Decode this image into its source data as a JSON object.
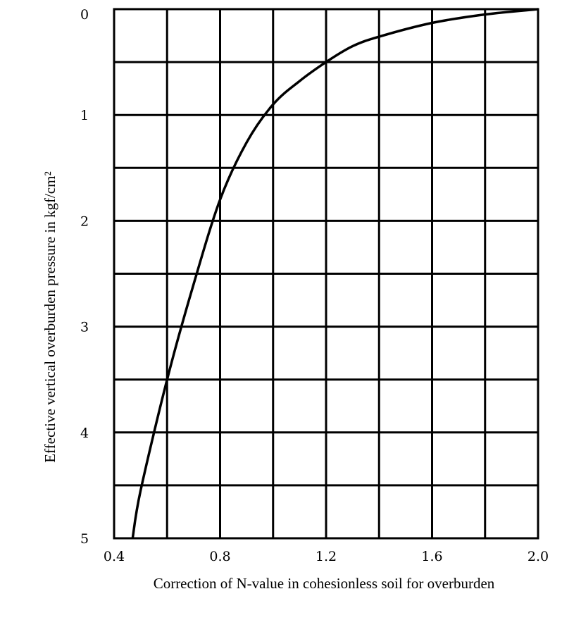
{
  "chart_data": {
    "type": "line",
    "title": "",
    "xlabel": "Correction of N-value in cohesionless soil for overburden",
    "ylabel": "Effective vertical overburden pressure in kgf/cm²",
    "xlim": [
      0.4,
      2.0
    ],
    "ylim": [
      0,
      5
    ],
    "y_inverted": true,
    "grid": true,
    "x_grid_step": 0.2,
    "y_grid_step": 0.5,
    "x_tick_labels": [
      "0.4",
      "0.8",
      "1.2",
      "1.6",
      "2.0"
    ],
    "x_tick_values": [
      0.4,
      0.8,
      1.2,
      1.6,
      2.0
    ],
    "y_tick_labels": [
      "0",
      "1",
      "2",
      "3",
      "4",
      "5"
    ],
    "y_tick_values": [
      0,
      1,
      2,
      3,
      4,
      5
    ],
    "series": [
      {
        "x": [
          2.0,
          1.8,
          1.6,
          1.4,
          1.3,
          1.2,
          1.1,
          1.0,
          0.9,
          0.8,
          0.7,
          0.6,
          0.5,
          0.47
        ],
        "y": [
          0.0,
          0.05,
          0.13,
          0.26,
          0.35,
          0.5,
          0.68,
          0.9,
          1.26,
          1.8,
          2.6,
          3.5,
          4.55,
          5.0
        ]
      }
    ]
  }
}
